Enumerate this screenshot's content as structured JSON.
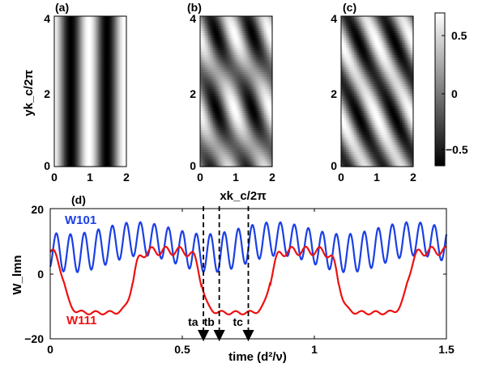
{
  "top_panels": {
    "panel_labels": [
      "(a)",
      "(b)",
      "(c)"
    ],
    "ylabel": "yk_c/2π",
    "xlabel": "xk_c/2π",
    "y_ticks": [
      "0",
      "2",
      "4"
    ],
    "x_ticks": [
      "0",
      "1",
      "2"
    ],
    "colorbar_ticks": [
      "0.5",
      "0",
      "−0.5"
    ],
    "colorbar_range": [
      -0.7,
      0.7
    ]
  },
  "chart_data": {
    "type": "line",
    "panel_label": "(d)",
    "xlabel": "time (d²/ν)",
    "ylabel": "W_lmn",
    "xlim": [
      0,
      1.5
    ],
    "ylim": [
      -20,
      20
    ],
    "x_ticks": [
      "0",
      "0.5",
      "1",
      "1.5"
    ],
    "y_ticks": [
      "20",
      "0",
      "−20"
    ],
    "series": [
      {
        "name": "W101",
        "color": "#1a3fe6"
      },
      {
        "name": "W111",
        "color": "#ee1010"
      }
    ],
    "markers": [
      {
        "label": "ta",
        "time": 0.58
      },
      {
        "label": "tb",
        "time": 0.64
      },
      {
        "label": "tc",
        "time": 0.75
      }
    ]
  },
  "colors": {
    "blue": "#1a3fe6",
    "red": "#ee1010"
  }
}
